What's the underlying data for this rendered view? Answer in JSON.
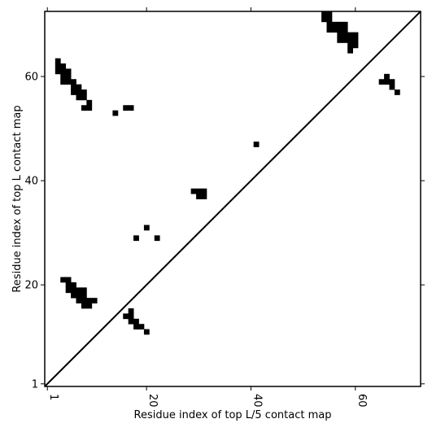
{
  "chart_data": {
    "type": "heatmap",
    "title": "",
    "xlabel": "Residue index of top L/5 contact map",
    "ylabel": "Residue index of top L contact map",
    "xlim": [
      0.5,
      72.5
    ],
    "ylim": [
      0.5,
      72.5
    ],
    "xticks": [
      1,
      20,
      40,
      60
    ],
    "yticks": [
      1,
      20,
      40,
      60
    ],
    "diagonal": true,
    "upper_contacts": [
      [
        54,
        72
      ],
      [
        55,
        72
      ],
      [
        54,
        71
      ],
      [
        55,
        71
      ],
      [
        55,
        70
      ],
      [
        56,
        70
      ],
      [
        57,
        70
      ],
      [
        58,
        70
      ],
      [
        55,
        69
      ],
      [
        56,
        69
      ],
      [
        57,
        69
      ],
      [
        58,
        69
      ],
      [
        57,
        68
      ],
      [
        58,
        68
      ],
      [
        59,
        68
      ],
      [
        60,
        68
      ],
      [
        57,
        67
      ],
      [
        58,
        67
      ],
      [
        59,
        67
      ],
      [
        60,
        67
      ],
      [
        59,
        66
      ],
      [
        60,
        66
      ],
      [
        59,
        65
      ],
      [
        66,
        60
      ],
      [
        65,
        59
      ],
      [
        66,
        59
      ],
      [
        67,
        59
      ],
      [
        67,
        58
      ],
      [
        68,
        57
      ],
      [
        41,
        47
      ],
      [
        31,
        38
      ],
      [
        30,
        38
      ],
      [
        29,
        38
      ],
      [
        30,
        37
      ],
      [
        31,
        37
      ],
      [
        20,
        31
      ],
      [
        18,
        29
      ],
      [
        22,
        29
      ],
      [
        14,
        53
      ],
      [
        16,
        54
      ],
      [
        17,
        54
      ]
    ],
    "lower_contacts": [
      [
        3,
        63
      ],
      [
        3,
        62
      ],
      [
        4,
        62
      ],
      [
        3,
        61
      ],
      [
        4,
        61
      ],
      [
        5,
        61
      ],
      [
        4,
        60
      ],
      [
        5,
        60
      ],
      [
        4,
        59
      ],
      [
        5,
        59
      ],
      [
        6,
        59
      ],
      [
        6,
        58
      ],
      [
        7,
        58
      ],
      [
        6,
        57
      ],
      [
        7,
        57
      ],
      [
        8,
        57
      ],
      [
        7,
        56
      ],
      [
        8,
        56
      ],
      [
        9,
        55
      ],
      [
        9,
        54
      ],
      [
        8,
        54
      ],
      [
        4,
        21
      ],
      [
        5,
        21
      ],
      [
        5,
        20
      ],
      [
        6,
        20
      ],
      [
        5,
        19
      ],
      [
        6,
        19
      ],
      [
        7,
        19
      ],
      [
        8,
        19
      ],
      [
        6,
        18
      ],
      [
        7,
        18
      ],
      [
        8,
        18
      ],
      [
        7,
        17
      ],
      [
        8,
        17
      ],
      [
        9,
        17
      ],
      [
        10,
        17
      ],
      [
        8,
        16
      ],
      [
        9,
        16
      ],
      [
        17,
        15
      ],
      [
        16,
        14
      ],
      [
        17,
        14
      ],
      [
        17,
        13
      ],
      [
        18,
        13
      ],
      [
        18,
        12
      ],
      [
        19,
        12
      ],
      [
        20,
        11
      ]
    ]
  }
}
